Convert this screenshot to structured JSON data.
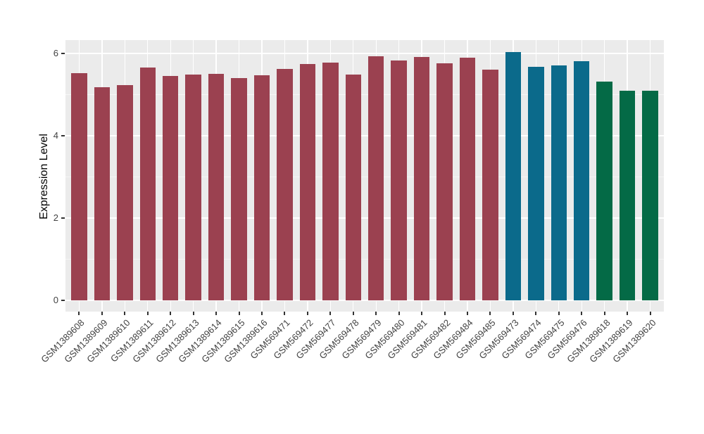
{
  "chart_data": {
    "type": "bar",
    "title": "",
    "xlabel": "",
    "ylabel": "Expression Level",
    "ylim": [
      0,
      6.33
    ],
    "yticks": [
      0,
      2,
      4,
      6
    ],
    "yminor": [
      1,
      3,
      5
    ],
    "grid": "on",
    "legend": "none",
    "panel_bg": "#EBEBEB",
    "grid_major_color": "#FFFFFF",
    "grid_minor_color": "#F6F6F6",
    "axis_text_color": "#424242",
    "categories": [
      "GSM1389608",
      "GSM1389609",
      "GSM1389610",
      "GSM1389611",
      "GSM1389612",
      "GSM1389613",
      "GSM1389614",
      "GSM1389615",
      "GSM1389616",
      "GSM569471",
      "GSM569472",
      "GSM569477",
      "GSM569478",
      "GSM569479",
      "GSM569480",
      "GSM569481",
      "GSM569482",
      "GSM569484",
      "GSM569485",
      "GSM569473",
      "GSM569474",
      "GSM569475",
      "GSM569476",
      "GSM1389618",
      "GSM1389619",
      "GSM1389620"
    ],
    "values": [
      5.52,
      5.18,
      5.23,
      5.66,
      5.45,
      5.49,
      5.5,
      5.4,
      5.47,
      5.62,
      5.74,
      5.78,
      5.48,
      5.94,
      5.83,
      5.91,
      5.76,
      5.89,
      5.61,
      6.03,
      5.68,
      5.71,
      5.81,
      5.32,
      5.09,
      5.09
    ],
    "bar_colors": [
      "#9B4150",
      "#9B4150",
      "#9B4150",
      "#9B4150",
      "#9B4150",
      "#9B4150",
      "#9B4150",
      "#9B4150",
      "#9B4150",
      "#9B4150",
      "#9B4150",
      "#9B4150",
      "#9B4150",
      "#9B4150",
      "#9B4150",
      "#9B4150",
      "#9B4150",
      "#9B4150",
      "#9B4150",
      "#0B6A8B",
      "#0B6A8B",
      "#0B6A8B",
      "#0B6A8B",
      "#046A46",
      "#046A46",
      "#046A46"
    ],
    "palette": {
      "maroon": "#9B4150",
      "teal": "#0B6A8B",
      "green": "#046A46"
    }
  }
}
